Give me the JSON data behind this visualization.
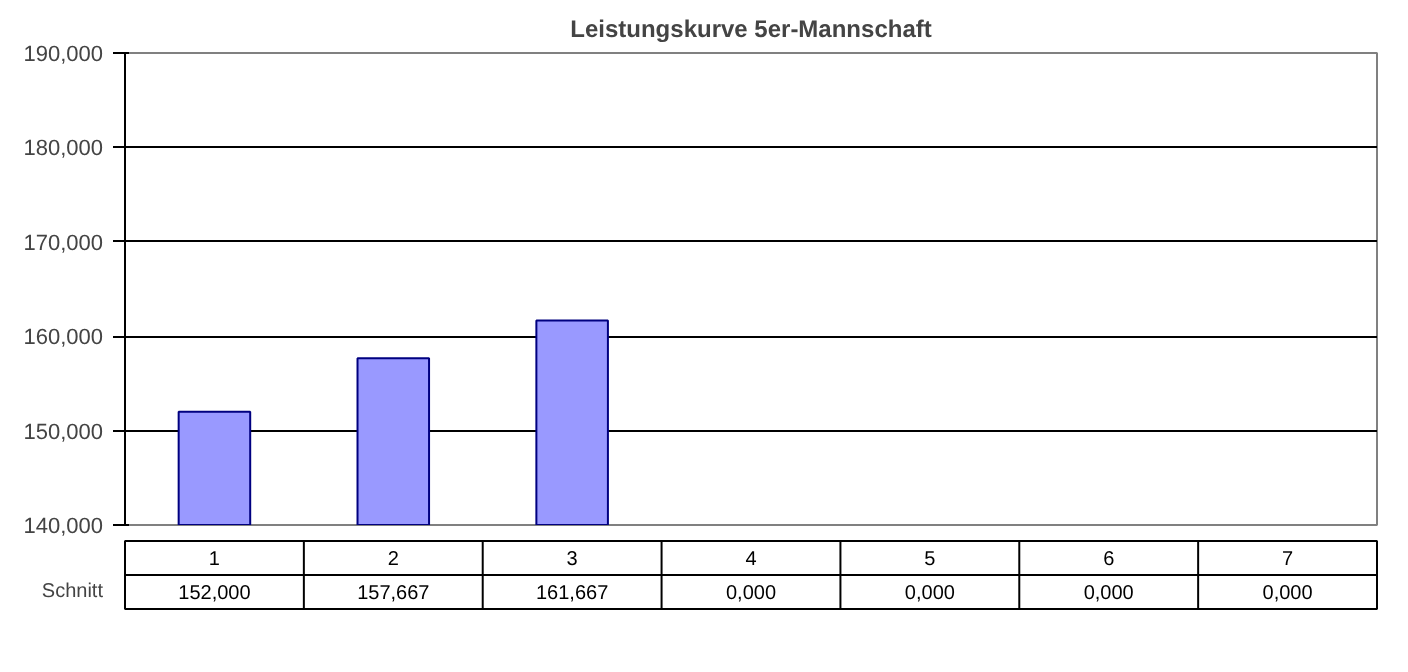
{
  "chart_data": {
    "type": "bar",
    "title": "Leistungskurve 5er-Mannschaft",
    "categories": [
      "1",
      "2",
      "3",
      "4",
      "5",
      "6",
      "7"
    ],
    "series": [
      {
        "name": "Schnitt",
        "color": "#9999ff",
        "values": [
          152,
          157.667,
          161.667,
          null,
          null,
          null,
          null
        ],
        "value_labels": [
          "152,000",
          "157,667",
          "161,667",
          "0,000",
          "0,000",
          "0,000",
          "0,000"
        ]
      }
    ],
    "ylim": [
      140,
      190
    ],
    "yticks": [
      {
        "value": 140,
        "label": "140,000"
      },
      {
        "value": 150,
        "label": "150,000"
      },
      {
        "value": 160,
        "label": "160,000"
      },
      {
        "value": 170,
        "label": "170,000"
      },
      {
        "value": 180,
        "label": "180,000"
      },
      {
        "value": 190,
        "label": "190,000"
      }
    ],
    "grid": "y"
  }
}
